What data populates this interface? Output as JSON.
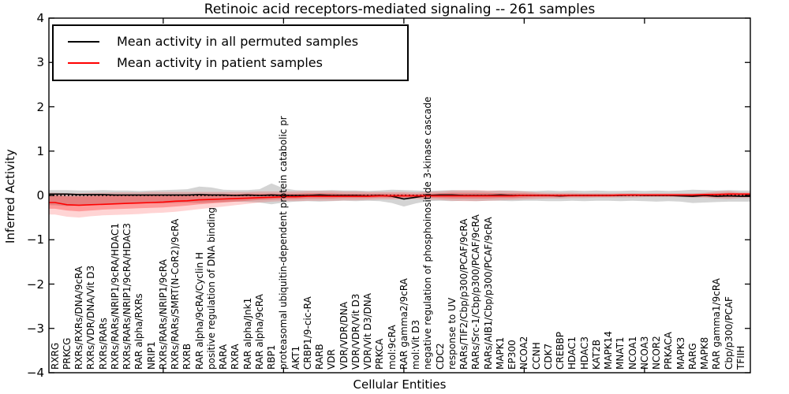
{
  "chart_data": {
    "type": "line",
    "title": "Retinoic acid receptors-mediated signaling -- 261 samples",
    "xlabel": "Cellular Entities",
    "ylabel": "Inferred Activity",
    "ylim": [
      -4,
      4
    ],
    "grid": false,
    "legend_position": "upper left",
    "ytick_values": [
      4,
      3,
      2,
      1,
      0,
      -1,
      -2,
      -3,
      -4
    ],
    "ytick_labels": [
      "4",
      "3",
      "2",
      "1",
      "0",
      "−1",
      "−2",
      "−3",
      "−4"
    ],
    "xtick_major_indices": [
      9,
      19,
      29,
      39,
      49
    ],
    "legend": [
      {
        "label": "Mean activity in all permuted samples",
        "color": "#000000"
      },
      {
        "label": "Mean activity in patient samples",
        "color": "#ff0000"
      }
    ],
    "colors": {
      "permuted_line": "#000000",
      "patient_line": "#ff0000",
      "permuted_band": "rgba(120,120,120,0.32)",
      "patient_band_outer": "rgba(255,0,0,0.17)",
      "patient_band_inner": "rgba(255,0,0,0.28)",
      "zero_line": "#000000"
    },
    "categories": [
      "RXRG",
      "PRKCG",
      "RXRs/RXRs/DNA/9cRA",
      "RXRs/VDR/DNA/Vit D3",
      "RXRs/RARs",
      "RXRs/RARs/NRIP1/9cRA/HDAC1",
      "RXRs/RARs/NRIP1/9cRA/HDAC3",
      "RAR alpha/RXRs",
      "NRIP1",
      "RXRs/RARs/NRIP1/9cRA",
      "RXRs/RARs/SMRT(N-CoR2)/9cRA",
      "RXRB",
      "RAR alpha/9cRA/Cyclin H",
      "positive regulation of DNA binding",
      "RARA",
      "RXRA",
      "RAR alpha/Jnk1",
      "RAR alpha/9cRA",
      "RBP1",
      "proteasomal ubiquitin-dependent protein catabolic pr",
      "AKT1",
      "CRBP1/9-cic-RA",
      "RARB",
      "VDR",
      "VDR/VDR/DNA",
      "VDR/VDR/Vit D3",
      "VDR/Vit D3/DNA",
      "PRKCA",
      "mol:9cRA",
      "RAR gamma2/9cRA",
      "mol:Vit D3",
      "negative regulation of phosphoinositide 3-kinase cascade",
      "CDC2",
      "response to UV",
      "RARs/TIF2/Cbp/p300/PCAF/9cRA",
      "RARs/Src-1/Cbp/p300/PCAF/9cRA",
      "RARs/AIB1/Cbp/p300/PCAF/9cRA",
      "MAPK1",
      "EP300",
      "NCOA2",
      "CCNH",
      "CDK7",
      "CREBBP",
      "HDAC1",
      "HDAC3",
      "KAT2B",
      "MAPK14",
      "MNAT1",
      "NCOA1",
      "NCOA3",
      "NCOR2",
      "PRKACA",
      "MAPK3",
      "RARG",
      "MAPK8",
      "RAR gamma1/9cRA",
      "Cbp/p300/PCAF",
      "TFIIH"
    ],
    "series": {
      "permuted_mean": [
        0.03,
        0.03,
        0.02,
        0.02,
        0.02,
        0.01,
        0.01,
        0.01,
        0.01,
        0.01,
        0.01,
        0.01,
        0.02,
        0.01,
        0.01,
        0.0,
        0.01,
        0.0,
        0.01,
        0.0,
        0.0,
        0.0,
        0.01,
        0.0,
        0.0,
        0.0,
        -0.01,
        0.0,
        -0.02,
        -0.08,
        -0.04,
        0.0,
        0.01,
        0.01,
        0.0,
        0.0,
        0.0,
        0.01,
        0.0,
        0.0,
        0.0,
        0.0,
        -0.01,
        0.0,
        0.0,
        0.0,
        0.0,
        0.0,
        0.01,
        0.0,
        0.0,
        0.0,
        -0.01,
        -0.02,
        0.0,
        -0.02,
        -0.01,
        -0.02
      ],
      "permuted_upper": [
        0.12,
        0.12,
        0.11,
        0.11,
        0.12,
        0.11,
        0.11,
        0.1,
        0.11,
        0.12,
        0.13,
        0.14,
        0.2,
        0.18,
        0.13,
        0.12,
        0.12,
        0.14,
        0.27,
        0.16,
        0.12,
        0.11,
        0.11,
        0.12,
        0.11,
        0.11,
        0.1,
        0.11,
        0.13,
        0.12,
        0.11,
        0.1,
        0.11,
        0.12,
        0.11,
        0.11,
        0.1,
        0.11,
        0.11,
        0.1,
        0.1,
        0.11,
        0.1,
        0.11,
        0.1,
        0.11,
        0.1,
        0.1,
        0.11,
        0.1,
        0.11,
        0.1,
        0.11,
        0.13,
        0.12,
        0.11,
        0.12,
        0.11
      ],
      "permuted_lower": [
        -0.22,
        -0.24,
        -0.23,
        -0.22,
        -0.2,
        -0.2,
        -0.19,
        -0.18,
        -0.18,
        -0.18,
        -0.17,
        -0.16,
        -0.17,
        -0.16,
        -0.15,
        -0.14,
        -0.15,
        -0.16,
        -0.2,
        -0.16,
        -0.14,
        -0.13,
        -0.14,
        -0.13,
        -0.12,
        -0.13,
        -0.12,
        -0.13,
        -0.17,
        -0.25,
        -0.18,
        -0.13,
        -0.12,
        -0.13,
        -0.12,
        -0.13,
        -0.12,
        -0.12,
        -0.13,
        -0.12,
        -0.12,
        -0.13,
        -0.13,
        -0.12,
        -0.13,
        -0.12,
        -0.12,
        -0.13,
        -0.12,
        -0.13,
        -0.14,
        -0.13,
        -0.14,
        -0.17,
        -0.16,
        -0.15,
        -0.14,
        -0.14
      ],
      "patient_mean": [
        -0.16,
        -0.21,
        -0.22,
        -0.21,
        -0.2,
        -0.19,
        -0.18,
        -0.17,
        -0.16,
        -0.15,
        -0.13,
        -0.12,
        -0.1,
        -0.09,
        -0.08,
        -0.07,
        -0.06,
        -0.05,
        -0.04,
        -0.03,
        -0.03,
        -0.02,
        -0.02,
        -0.02,
        -0.02,
        -0.02,
        -0.02,
        -0.01,
        -0.01,
        -0.01,
        -0.01,
        -0.01,
        -0.01,
        -0.01,
        -0.01,
        -0.01,
        -0.01,
        -0.01,
        -0.01,
        0.0,
        0.0,
        0.0,
        0.0,
        0.0,
        0.0,
        0.0,
        0.0,
        0.01,
        0.01,
        0.01,
        0.01,
        0.01,
        0.01,
        0.01,
        0.02,
        0.02,
        0.03,
        0.03
      ],
      "patient_outer_upper": [
        0.06,
        0.05,
        0.05,
        0.06,
        0.06,
        0.07,
        0.07,
        0.07,
        0.08,
        0.08,
        0.08,
        0.08,
        0.08,
        0.08,
        0.08,
        0.08,
        0.08,
        0.09,
        0.09,
        0.09,
        0.09,
        0.1,
        0.1,
        0.1,
        0.09,
        0.09,
        0.08,
        0.08,
        0.08,
        0.08,
        0.07,
        0.08,
        0.09,
        0.11,
        0.12,
        0.12,
        0.11,
        0.11,
        0.1,
        0.09,
        0.07,
        0.06,
        0.06,
        0.06,
        0.05,
        0.05,
        0.05,
        0.05,
        0.05,
        0.05,
        0.05,
        0.05,
        0.05,
        0.05,
        0.06,
        0.09,
        0.1,
        0.07
      ],
      "patient_outer_lower": [
        -0.43,
        -0.48,
        -0.5,
        -0.47,
        -0.45,
        -0.44,
        -0.43,
        -0.42,
        -0.4,
        -0.39,
        -0.37,
        -0.34,
        -0.31,
        -0.28,
        -0.25,
        -0.22,
        -0.19,
        -0.16,
        -0.14,
        -0.13,
        -0.13,
        -0.12,
        -0.12,
        -0.12,
        -0.11,
        -0.11,
        -0.1,
        -0.09,
        -0.09,
        -0.09,
        -0.08,
        -0.09,
        -0.1,
        -0.12,
        -0.13,
        -0.13,
        -0.12,
        -0.11,
        -0.1,
        -0.09,
        -0.08,
        -0.07,
        -0.07,
        -0.06,
        -0.06,
        -0.05,
        -0.05,
        -0.05,
        -0.05,
        -0.04,
        -0.04,
        -0.04,
        -0.04,
        -0.05,
        -0.05,
        -0.07,
        -0.08,
        -0.06
      ],
      "patient_inner_upper": [
        0.0,
        -0.02,
        -0.02,
        -0.01,
        0.0,
        0.0,
        0.0,
        0.01,
        0.01,
        0.02,
        0.02,
        0.02,
        0.03,
        0.03,
        0.03,
        0.03,
        0.04,
        0.04,
        0.04,
        0.04,
        0.04,
        0.05,
        0.05,
        0.05,
        0.04,
        0.04,
        0.04,
        0.04,
        0.04,
        0.04,
        0.03,
        0.04,
        0.05,
        0.06,
        0.06,
        0.06,
        0.06,
        0.05,
        0.05,
        0.05,
        0.04,
        0.03,
        0.03,
        0.03,
        0.03,
        0.03,
        0.03,
        0.03,
        0.03,
        0.03,
        0.03,
        0.03,
        0.03,
        0.03,
        0.04,
        0.05,
        0.06,
        0.05
      ],
      "patient_inner_lower": [
        -0.3,
        -0.34,
        -0.36,
        -0.34,
        -0.32,
        -0.31,
        -0.3,
        -0.29,
        -0.28,
        -0.27,
        -0.25,
        -0.23,
        -0.2,
        -0.18,
        -0.16,
        -0.14,
        -0.12,
        -0.1,
        -0.09,
        -0.08,
        -0.08,
        -0.07,
        -0.07,
        -0.07,
        -0.06,
        -0.06,
        -0.06,
        -0.05,
        -0.05,
        -0.05,
        -0.05,
        -0.05,
        -0.06,
        -0.07,
        -0.07,
        -0.07,
        -0.07,
        -0.06,
        -0.06,
        -0.05,
        -0.04,
        -0.04,
        -0.04,
        -0.03,
        -0.03,
        -0.03,
        -0.03,
        -0.02,
        -0.02,
        -0.02,
        -0.02,
        -0.02,
        -0.02,
        -0.03,
        -0.03,
        -0.04,
        -0.04,
        -0.03
      ]
    }
  }
}
